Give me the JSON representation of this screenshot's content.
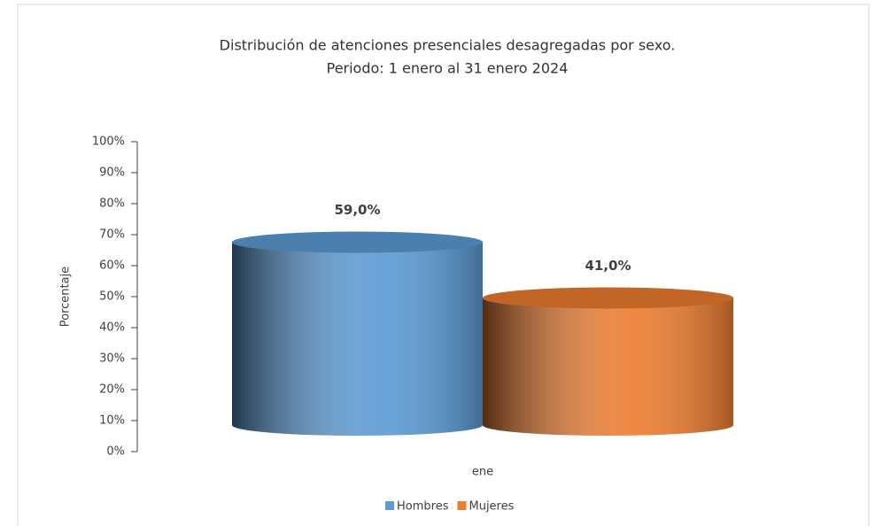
{
  "chart_data": {
    "type": "cylinder",
    "title": "Distribución de atenciones presenciales desagregadas por sexo.",
    "subtitle": "Periodo: 1 enero al 31 enero 2024",
    "y_label": "Porcentaje",
    "categories": [
      "ene"
    ],
    "series": [
      {
        "name": "Hombres",
        "color": "#5b9bd5",
        "values": [
          59
        ],
        "value_labels": [
          "59,0%"
        ]
      },
      {
        "name": "Mujeres",
        "color": "#ed7d31",
        "values": [
          41
        ],
        "value_labels": [
          "41,0%"
        ]
      }
    ],
    "ylim": [
      0,
      100
    ],
    "yticks": [
      {
        "value": 0,
        "label": "0%"
      },
      {
        "value": 10,
        "label": "10%"
      },
      {
        "value": 20,
        "label": "20%"
      },
      {
        "value": 30,
        "label": "30%"
      },
      {
        "value": 40,
        "label": "40%"
      },
      {
        "value": 50,
        "label": "50%"
      },
      {
        "value": 60,
        "label": "60%"
      },
      {
        "value": 70,
        "label": "70%"
      },
      {
        "value": 80,
        "label": "80%"
      },
      {
        "value": 90,
        "label": "90%"
      },
      {
        "value": 100,
        "label": "100%"
      }
    ],
    "legend": "bottom"
  }
}
